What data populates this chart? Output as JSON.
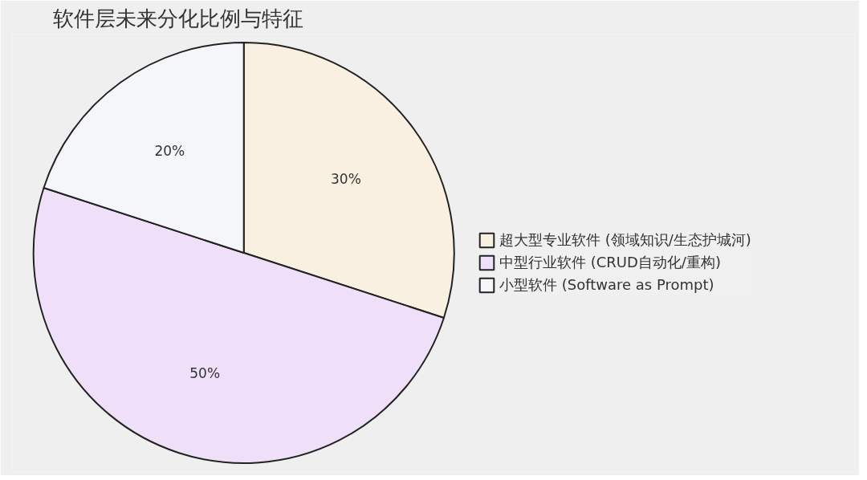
{
  "chart_data": {
    "type": "pie",
    "title": "软件层未来分化比例与特征",
    "categories": [
      "超大型专业软件 (领域知识/生态护城河)",
      "中型行业软件 (CRUD自动化/重构)",
      "小型软件 (Software as Prompt)"
    ],
    "values": [
      30,
      50,
      20
    ],
    "colors": [
      "#faf0e1",
      "#efdff8",
      "#f5f6fa"
    ],
    "value_labels": [
      "30%",
      "50%",
      "20%"
    ],
    "legend": "right"
  }
}
